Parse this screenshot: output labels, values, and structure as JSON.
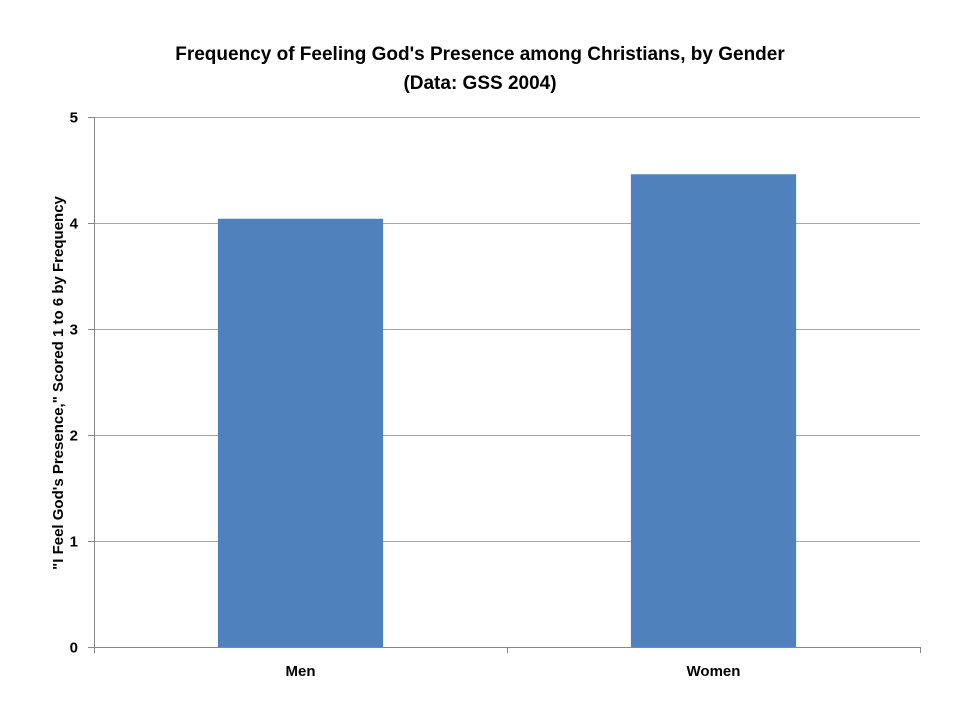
{
  "chart_data": {
    "type": "bar",
    "title": "Frequency of Feeling God's Presence among Christians, by Gender",
    "subtitle": "(Data: GSS 2004)",
    "xlabel": "",
    "ylabel": "\"I Feel God's Presence,\" Scored 1 to 6 by Frequency",
    "categories": [
      "Men",
      "Women"
    ],
    "values": [
      4.04,
      4.46
    ],
    "ylim": [
      0,
      5
    ],
    "yticks": [
      "0",
      "1",
      "2",
      "3",
      "4",
      "5"
    ],
    "grid": true,
    "legend": "none",
    "bar_color": "#4F81BD",
    "grid_color": "#A6A6A6",
    "axis_color": "#868686"
  }
}
